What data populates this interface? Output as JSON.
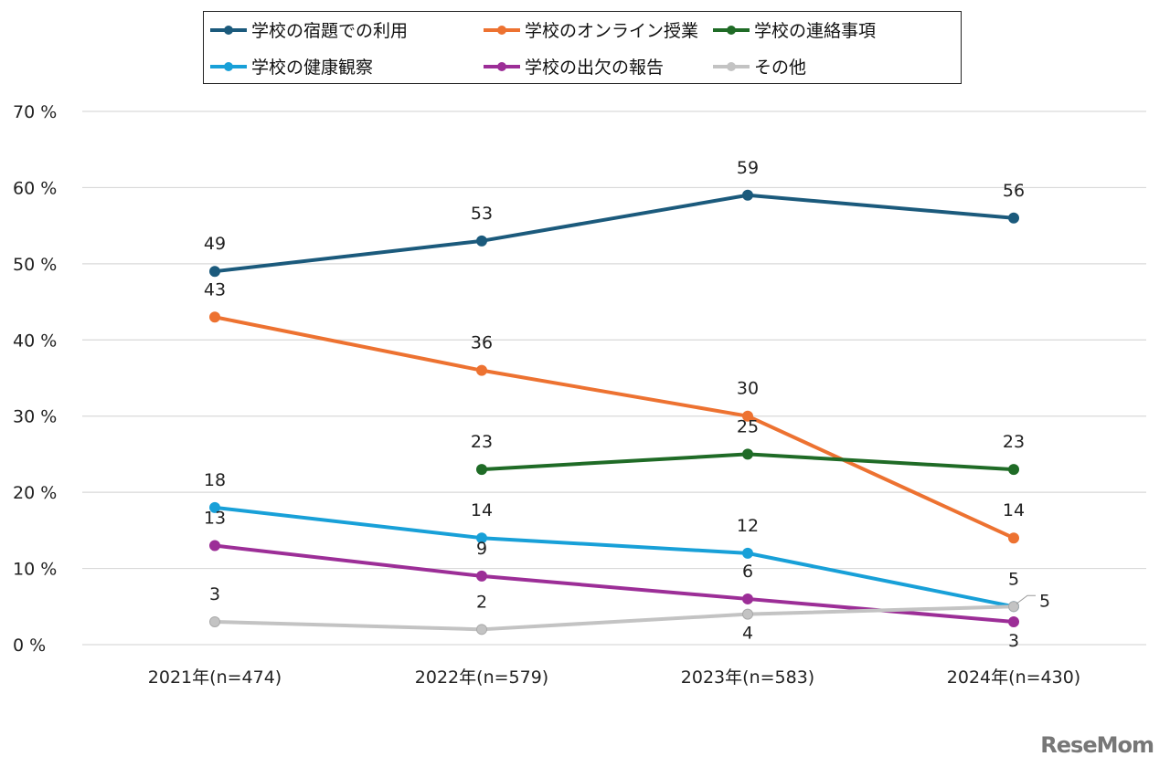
{
  "chart_data": {
    "type": "line",
    "title": "",
    "xlabel": "",
    "ylabel": "",
    "categories": [
      "2021年(n=474)",
      "2022年(n=579)",
      "2023年(n=583)",
      "2024年(n=430)"
    ],
    "ylim": [
      0,
      70
    ],
    "yticks": [
      "0 %",
      "10 %",
      "20 %",
      "30 %",
      "40 %",
      "50 %",
      "60 %",
      "70 %"
    ],
    "grid": true,
    "legend_position": "top",
    "series": [
      {
        "name": "学校の宿題での利用",
        "color": "#1b5a7c",
        "values": [
          49,
          53,
          59,
          56
        ]
      },
      {
        "name": "学校のオンライン授業",
        "color": "#ed7231",
        "values": [
          43,
          36,
          30,
          14
        ]
      },
      {
        "name": "学校の連絡事項",
        "color": "#1f6b26",
        "values": [
          null,
          23,
          25,
          23
        ]
      },
      {
        "name": "学校の健康観察",
        "color": "#18a0d8",
        "values": [
          18,
          14,
          12,
          5
        ]
      },
      {
        "name": "学校の出欠の報告",
        "color": "#9c2e97",
        "values": [
          13,
          9,
          6,
          3
        ]
      },
      {
        "name": "その他",
        "color": "#c3c3c3",
        "values": [
          3,
          2,
          4,
          5
        ]
      }
    ]
  },
  "watermark": "ReseMom"
}
